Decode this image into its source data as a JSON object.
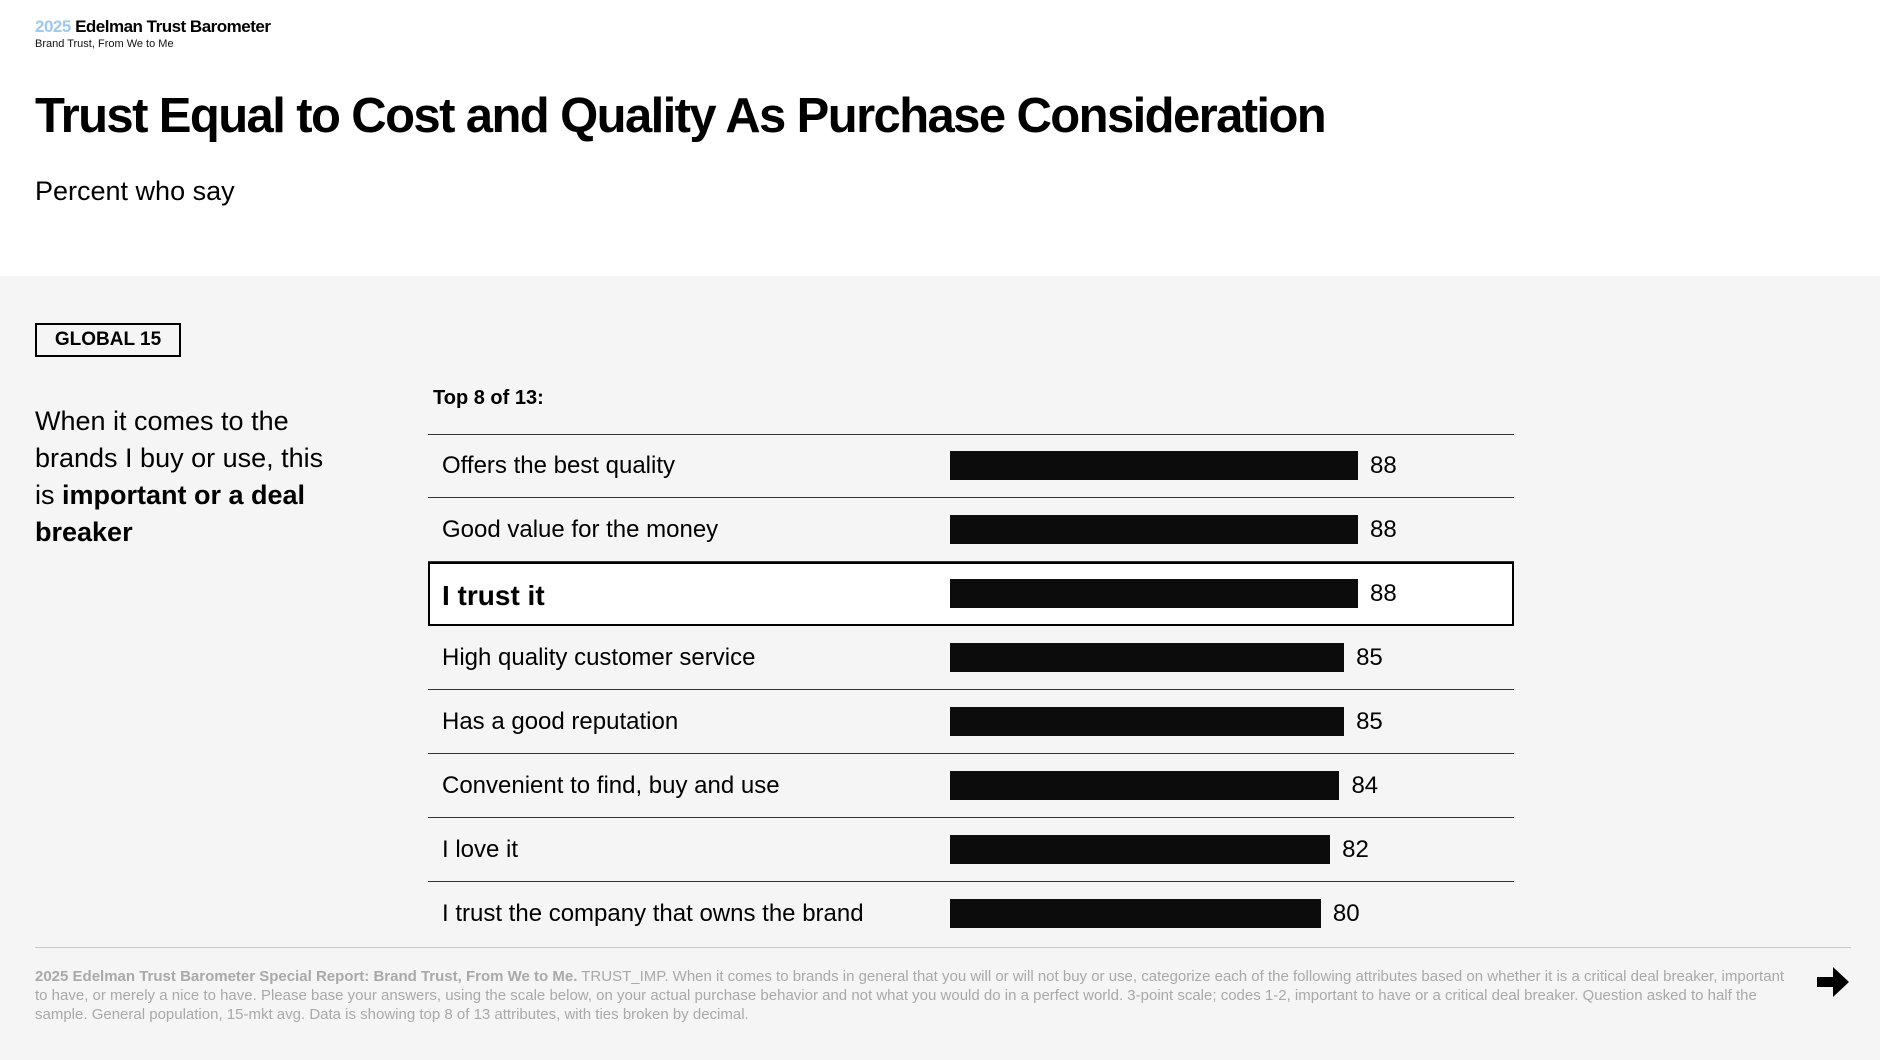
{
  "header": {
    "brand_year": "2025",
    "brand_name": "Edelman Trust Barometer",
    "brand_subtitle": "Brand Trust, From We to Me",
    "title": "Trust Equal to Cost and Quality As Purchase Consideration",
    "subtitle": "Percent who say"
  },
  "sidebar": {
    "tag": "GLOBAL 15",
    "lead_plain": "When it comes to the brands I buy or use, this is ",
    "lead_bold": "important or a deal breaker"
  },
  "chart_data": {
    "type": "bar",
    "orientation": "horizontal",
    "title": "Top 8 of 13:",
    "categories": [
      "Offers the best quality",
      "Good value for the money",
      "I trust it",
      "High quality customer service",
      "Has a good reputation",
      "Convenient to find, buy and use",
      "I love it",
      "I trust the company that owns the brand"
    ],
    "values": [
      88,
      88,
      88,
      85,
      85,
      84,
      82,
      80
    ],
    "highlighted_category": "I trust it",
    "xlim": [
      0,
      100
    ],
    "bar_color": "#0c0c0c",
    "data_labels": true,
    "grid": false
  },
  "footer": {
    "note_bold": "2025 Edelman Trust Barometer Special Report: Brand Trust, From We to Me.",
    "note_text": " TRUST_IMP. When it comes to brands in general that you will or will not buy or use, categorize each of the following attributes based on whether it is a critical deal breaker, important to have, or merely a nice to have. Please base your answers, using the scale below, on your actual purchase behavior and not what you would do in a perfect world. 3-point scale; codes 1-2, important  to have or a critical deal breaker. Question asked to half the sample. General population, 15-mkt avg. Data is showing top 8 of 13 attributes, with ties broken by decimal.",
    "next_icon": "arrow-right-icon"
  },
  "colors": {
    "brand_year": "#9ec9ee",
    "panel_bg": "#f5f5f5",
    "footnote": "#a9a9a9"
  }
}
